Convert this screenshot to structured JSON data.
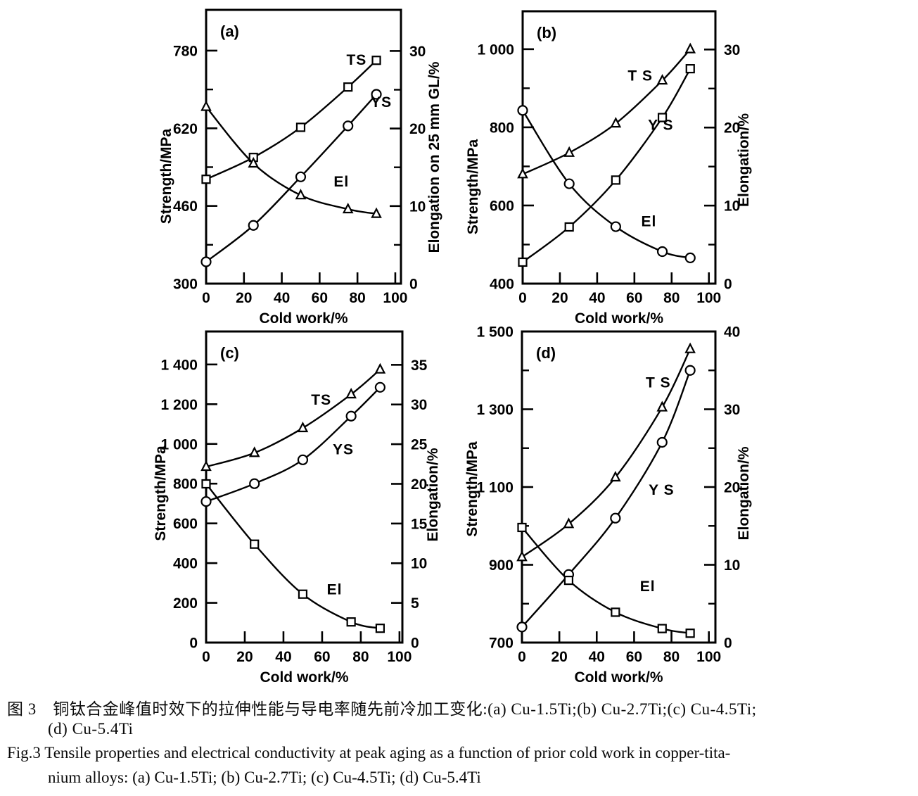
{
  "colors": {
    "ink": "#000000",
    "background": "#ffffff"
  },
  "figure": {
    "caption_zh_line1": "图 3　铜钛合金峰值时效下的拉伸性能与导电率随先前冷加工变化:(a) Cu-1.5Ti;(b) Cu-2.7Ti;(c) Cu-4.5Ti;",
    "caption_zh_line2": "(d) Cu-5.4Ti",
    "caption_en_line1": "Fig.3 Tensile properties and electrical conductivity at peak aging as a function of prior cold work in copper-tita-",
    "caption_en_line2": "nium alloys: (a) Cu-1.5Ti; (b) Cu-2.7Ti; (c) Cu-4.5Ti; (d) Cu-5.4Ti"
  },
  "chart_data": [
    {
      "type": "line",
      "panel": "(a)",
      "x": [
        0,
        25,
        50,
        75,
        90
      ],
      "x_axis": {
        "label": "Cold work/%",
        "range": [
          0,
          103
        ],
        "ticks": [
          0,
          20,
          40,
          60,
          80,
          100
        ],
        "tick_labels": [
          "0",
          "20",
          "40",
          "60",
          "80",
          "100"
        ]
      },
      "left_axis": {
        "label": "Strength/MPa",
        "range": [
          300,
          864
        ],
        "ticks": [
          300,
          460,
          620,
          780
        ],
        "tick_labels": [
          "300",
          "460",
          "620",
          "780"
        ],
        "minor_ticks": [
          380,
          540,
          700
        ]
      },
      "right_axis": {
        "label": "Elongation on 25 mm GL/%",
        "range": [
          0,
          35.3
        ],
        "ticks": [
          0,
          10,
          20,
          30
        ],
        "tick_labels": [
          "0",
          "10",
          "20",
          "30"
        ],
        "minor_ticks": [
          5,
          15,
          25
        ]
      },
      "series": [
        {
          "name": "TS",
          "label": "TS",
          "axis": "left",
          "marker": "square",
          "values": [
            515,
            560,
            622,
            705,
            760
          ],
          "label_pos": [
            0.72,
            0.2
          ]
        },
        {
          "name": "YS",
          "label": "YS",
          "axis": "left",
          "marker": "circle",
          "values": [
            345,
            420,
            520,
            625,
            690
          ],
          "label_pos": [
            0.845,
            0.355
          ]
        },
        {
          "name": "El",
          "label": "El",
          "axis": "right",
          "marker": "triangle",
          "values": [
            22.8,
            15.5,
            11.4,
            9.6,
            9.0
          ],
          "label_pos": [
            0.655,
            0.645
          ]
        }
      ]
    },
    {
      "type": "line",
      "panel": "(b)",
      "x": [
        0,
        25,
        50,
        75,
        90
      ],
      "x_axis": {
        "label": "Cold work/%",
        "range": [
          0,
          103.5
        ],
        "ticks": [
          0,
          20,
          40,
          60,
          80,
          100
        ],
        "tick_labels": [
          "0",
          "20",
          "40",
          "60",
          "80",
          "100"
        ]
      },
      "left_axis": {
        "label": "Strength/MPa",
        "range": [
          400,
          1097
        ],
        "ticks": [
          400,
          600,
          800,
          1000
        ],
        "tick_labels": [
          "400",
          "600",
          "800",
          "1 000"
        ],
        "minor_ticks": [
          500,
          700,
          900
        ]
      },
      "right_axis": {
        "label": "Elongation/%",
        "range": [
          0,
          34.9
        ],
        "ticks": [
          0,
          10,
          20,
          30
        ],
        "tick_labels": [
          "0",
          "10",
          "20",
          "30"
        ],
        "minor_ticks": [
          5,
          15,
          25
        ]
      },
      "series": [
        {
          "name": "TS",
          "label": "T S",
          "axis": "left",
          "marker": "triangle",
          "values": [
            680,
            735,
            810,
            920,
            1000
          ],
          "label_pos": [
            0.545,
            0.255
          ]
        },
        {
          "name": "YS",
          "label": "Y S",
          "axis": "left",
          "marker": "square",
          "values": [
            455,
            545,
            665,
            825,
            950
          ],
          "label_pos": [
            0.65,
            0.435
          ]
        },
        {
          "name": "El",
          "label": "El",
          "axis": "right",
          "marker": "circle",
          "values": [
            22.2,
            12.8,
            7.3,
            4.1,
            3.3
          ],
          "label_pos": [
            0.615,
            0.79
          ]
        }
      ]
    },
    {
      "type": "line",
      "panel": "(c)",
      "x": [
        0,
        25,
        50,
        75,
        90
      ],
      "x_axis": {
        "label": "Cold work/%",
        "range": [
          0,
          101.5
        ],
        "ticks": [
          0,
          20,
          40,
          60,
          80,
          100
        ],
        "tick_labels": [
          "0",
          "20",
          "40",
          "60",
          "80",
          "100"
        ]
      },
      "left_axis": {
        "label": "Strength/MPa",
        "range": [
          0,
          1566
        ],
        "ticks": [
          0,
          200,
          400,
          600,
          800,
          1000,
          1200,
          1400
        ],
        "tick_labels": [
          "0",
          "200",
          "400",
          "600",
          "800",
          "1 000",
          "1 200",
          "1 400"
        ],
        "minor_ticks": []
      },
      "right_axis": {
        "label": "Elongation/%",
        "range": [
          0,
          39.2
        ],
        "ticks": [
          0,
          5,
          10,
          15,
          20,
          25,
          30,
          35
        ],
        "tick_labels": [
          "0",
          "5",
          "10",
          "15",
          "20",
          "25",
          "30",
          "35"
        ],
        "minor_ticks": []
      },
      "series": [
        {
          "name": "TS",
          "label": "TS",
          "axis": "left",
          "marker": "triangle",
          "values": [
            885,
            955,
            1080,
            1250,
            1375
          ],
          "label_pos": [
            0.535,
            0.235
          ]
        },
        {
          "name": "YS",
          "label": "YS",
          "axis": "left",
          "marker": "circle",
          "values": [
            710,
            800,
            920,
            1140,
            1285
          ],
          "label_pos": [
            0.645,
            0.395
          ]
        },
        {
          "name": "El",
          "label": "El",
          "axis": "right",
          "marker": "square",
          "values": [
            20.0,
            12.4,
            6.1,
            2.6,
            1.8
          ],
          "label_pos": [
            0.615,
            0.845
          ]
        }
      ]
    },
    {
      "type": "line",
      "panel": "(d)",
      "x": [
        0,
        25,
        50,
        75,
        90
      ],
      "x_axis": {
        "label": "Cold work/%",
        "range": [
          0,
          103.5
        ],
        "ticks": [
          0,
          20,
          40,
          60,
          80,
          100
        ],
        "tick_labels": [
          "0",
          "20",
          "40",
          "60",
          "80",
          "100"
        ]
      },
      "left_axis": {
        "label": "Strength/MPa",
        "range": [
          700,
          1500
        ],
        "ticks": [
          700,
          900,
          1100,
          1300,
          1500
        ],
        "tick_labels": [
          "700",
          "900",
          "1 100",
          "1 300",
          "1 500"
        ],
        "minor_ticks": [
          800,
          1000,
          1200,
          1400
        ]
      },
      "right_axis": {
        "label": "Elongation/%",
        "range": [
          0,
          40
        ],
        "ticks": [
          0,
          10,
          20,
          30,
          40
        ],
        "tick_labels": [
          "0",
          "10",
          "20",
          "30",
          "40"
        ],
        "minor_ticks": [
          5,
          15,
          25,
          35
        ]
      },
      "series": [
        {
          "name": "TS",
          "label": "T S",
          "axis": "left",
          "marker": "triangle",
          "values": [
            920,
            1005,
            1125,
            1305,
            1455
          ],
          "label_pos": [
            0.64,
            0.18
          ]
        },
        {
          "name": "YS",
          "label": "Y S",
          "axis": "left",
          "marker": "circle",
          "values": [
            740,
            875,
            1020,
            1215,
            1400
          ],
          "label_pos": [
            0.655,
            0.525
          ]
        },
        {
          "name": "El",
          "label": "El",
          "axis": "right",
          "marker": "square",
          "values": [
            14.8,
            8.0,
            3.9,
            1.8,
            1.2
          ],
          "label_pos": [
            0.61,
            0.835
          ]
        }
      ]
    }
  ]
}
